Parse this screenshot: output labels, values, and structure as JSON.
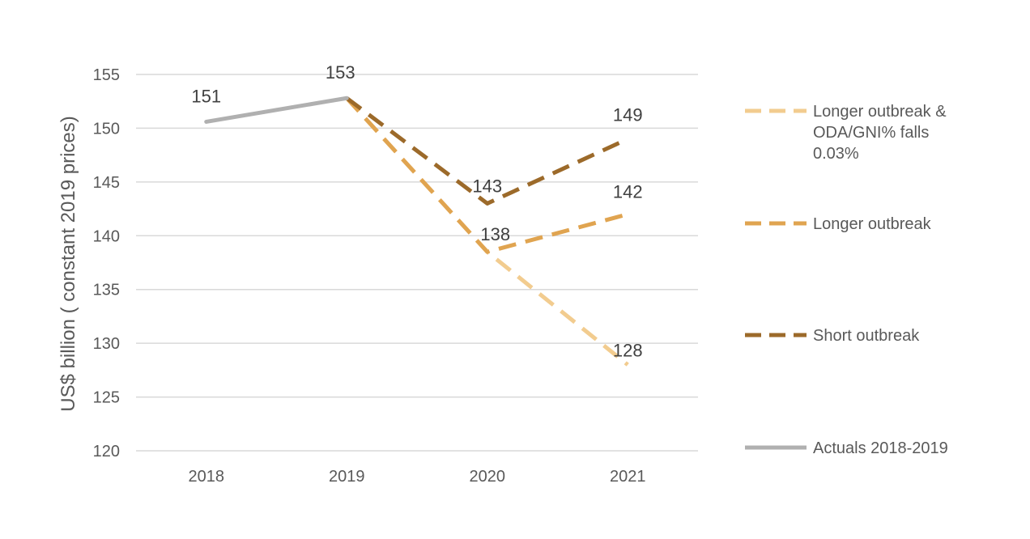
{
  "chart_data": {
    "type": "line",
    "xlabel": "",
    "ylabel": "US$ billion ( constant 2019 prices)",
    "categories": [
      "2018",
      "2019",
      "2020",
      "2021"
    ],
    "ylim": [
      120,
      155
    ],
    "yticks": [
      "120",
      "125",
      "130",
      "135",
      "140",
      "145",
      "150",
      "155"
    ],
    "grid": "horizontal",
    "legend_position": "right",
    "series": [
      {
        "name": "Longer outbreak & ODA/GNI% falls 0.03%",
        "legend_lines": [
          "Longer outbreak &",
          "ODA/GNI% falls",
          "0.03%"
        ],
        "values": [
          null,
          152.8,
          138.5,
          128
        ],
        "labels": [
          null,
          null,
          "138",
          "128"
        ],
        "color": "#f2cc8f",
        "style": "dashed"
      },
      {
        "name": "Longer outbreak",
        "legend_lines": [
          "Longer outbreak"
        ],
        "values": [
          null,
          152.8,
          138.5,
          142
        ],
        "labels": [
          null,
          null,
          null,
          "142"
        ],
        "color": "#e0a450",
        "style": "dashed"
      },
      {
        "name": "Short outbreak",
        "legend_lines": [
          "Short outbreak"
        ],
        "values": [
          null,
          152.8,
          143,
          149
        ],
        "labels": [
          null,
          null,
          "143",
          "149"
        ],
        "color": "#9c6a2a",
        "style": "dashed"
      },
      {
        "name": "Actuals 2018-2019",
        "legend_lines": [
          "Actuals 2018-2019"
        ],
        "values": [
          150.6,
          152.8,
          null,
          null
        ],
        "labels": [
          "151",
          "153",
          null,
          null
        ],
        "color": "#b0b0b0",
        "style": "solid"
      }
    ]
  }
}
